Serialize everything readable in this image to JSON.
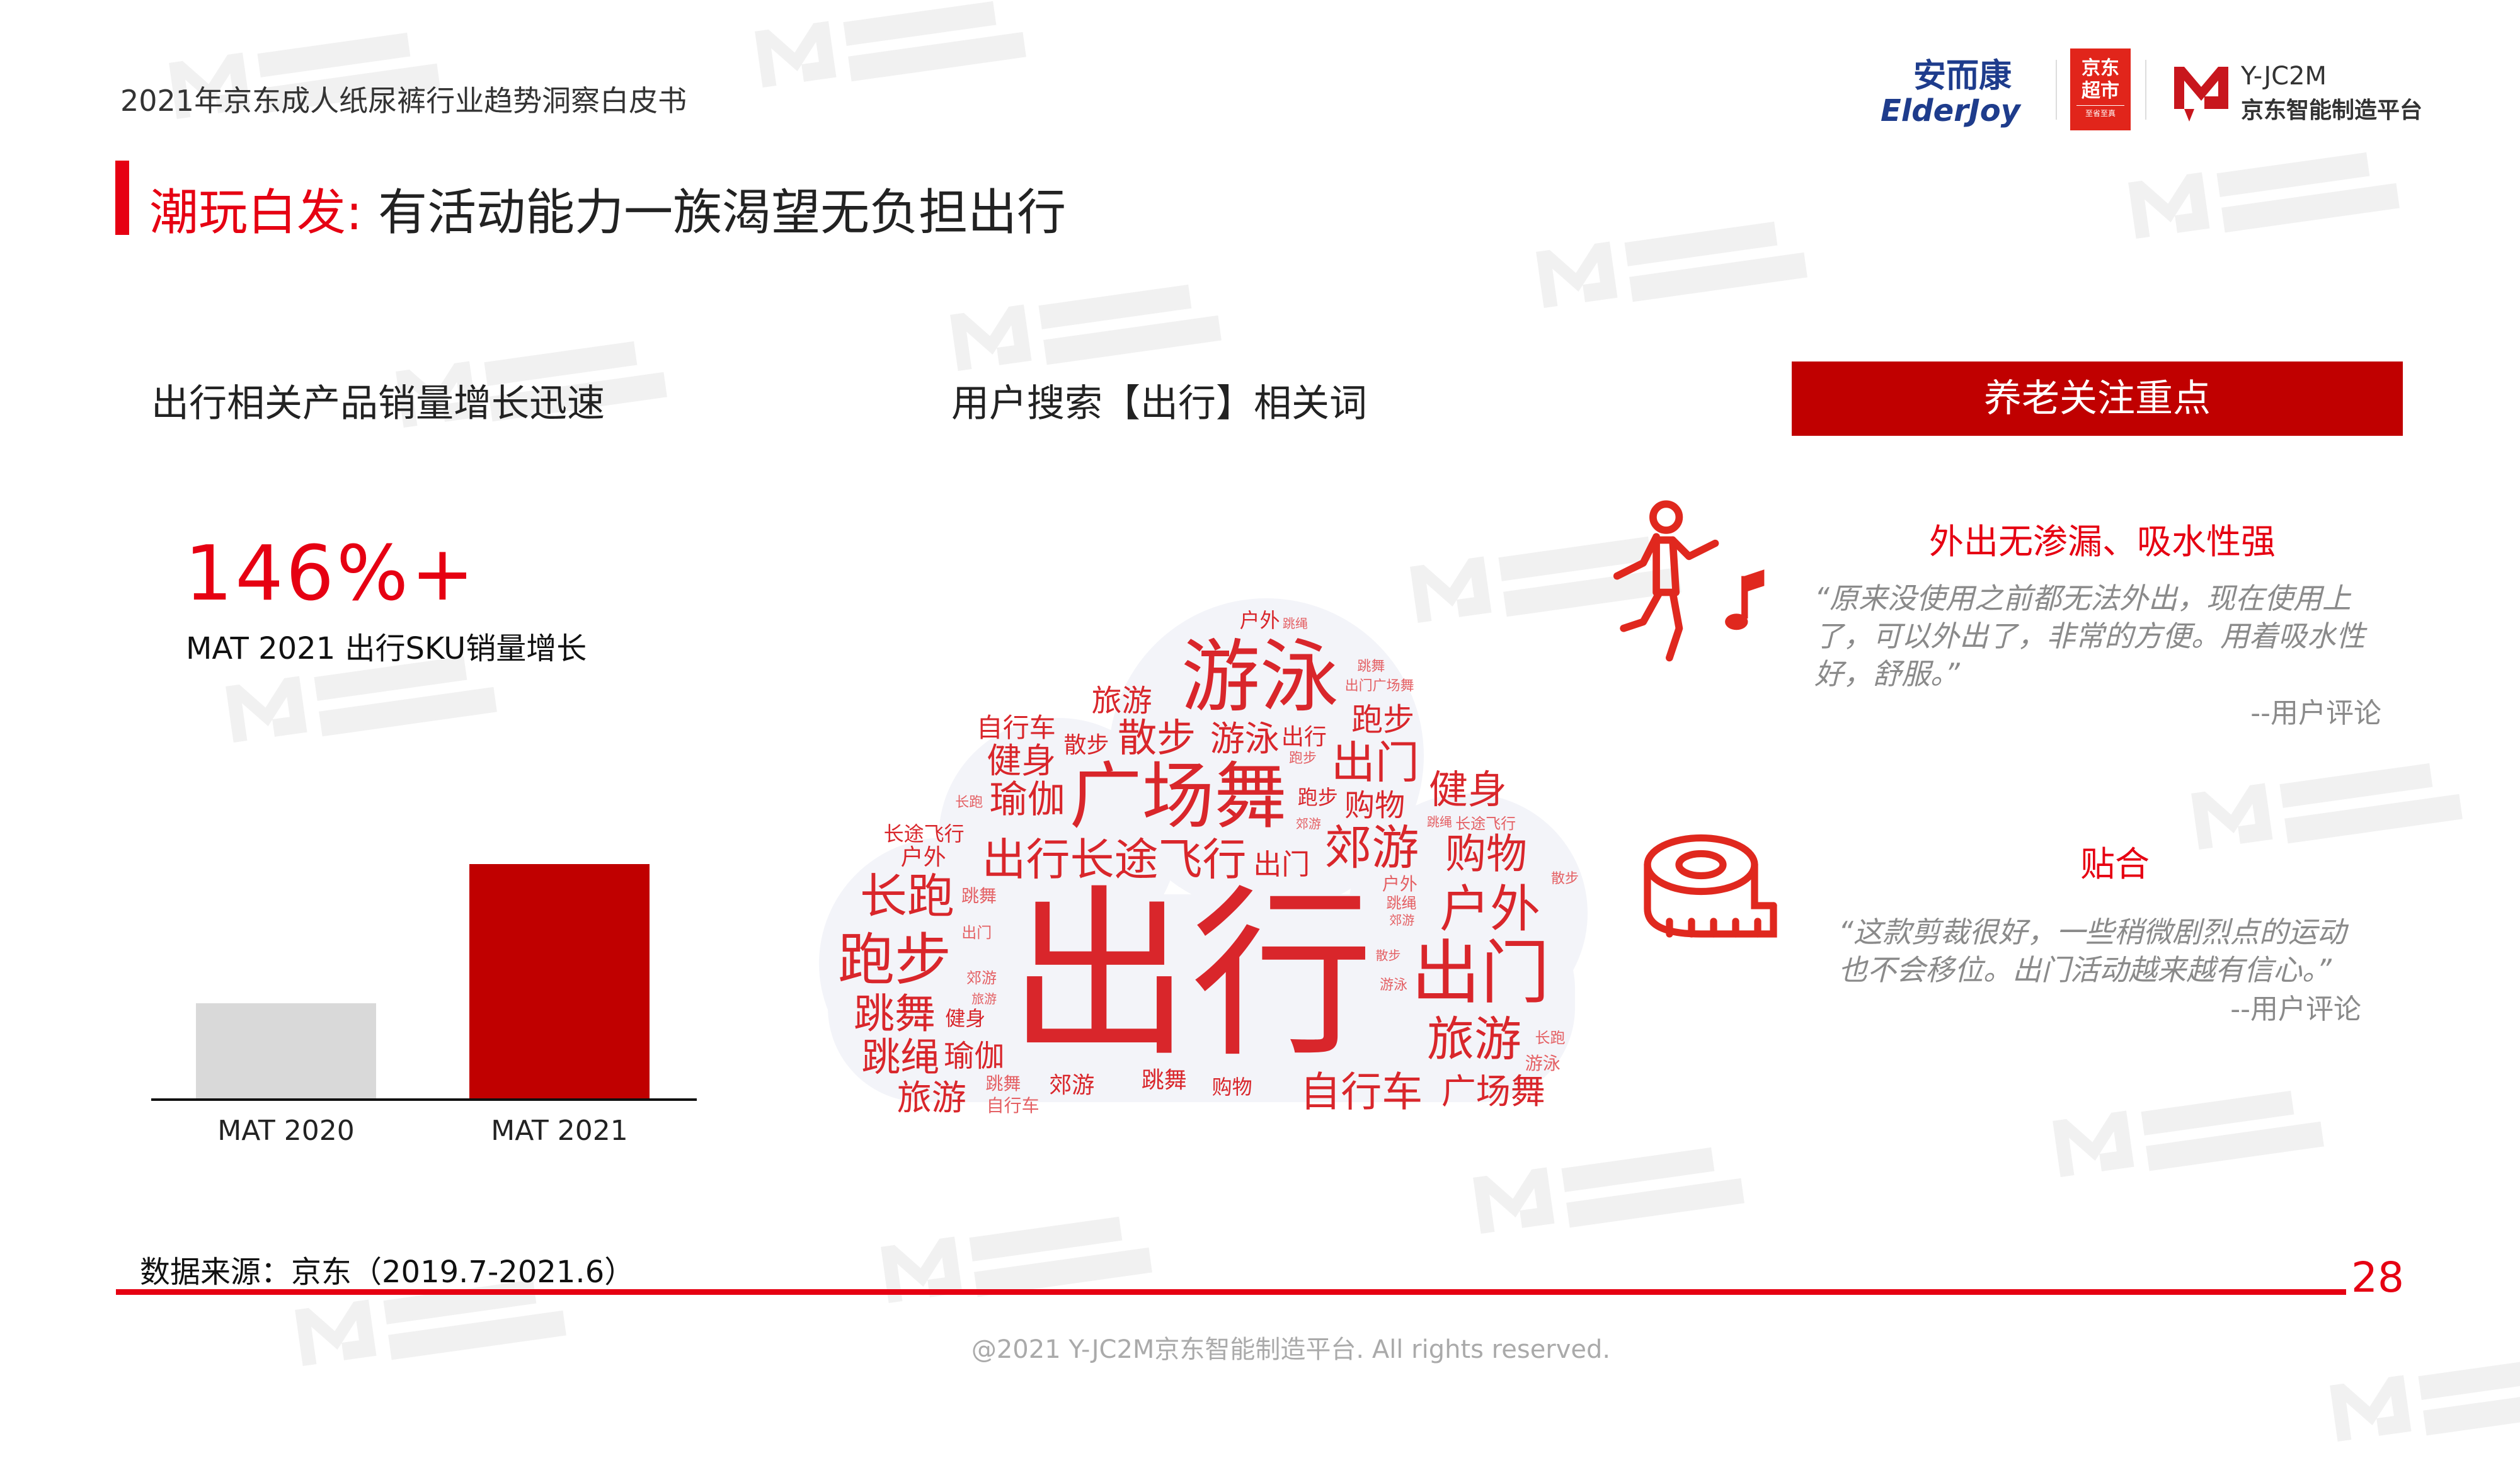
{
  "header": {
    "doc_title": "2021年京东成人纸尿裤行业趋势洞察白皮书",
    "logos": {
      "elderjoy_cn": "安而康",
      "elderjoy_en": "ElderJoy",
      "jd_line1": "京东",
      "jd_line2": "超市",
      "jd_slogan": "至省至真",
      "yjc2m_en": "Y-JC2M",
      "yjc2m_cn": "京东智能制造平台"
    }
  },
  "title": {
    "highlight": "潮玩白发:",
    "text": " 有活动能力一族渴望无负担出行",
    "accent_color": "#e60012"
  },
  "left": {
    "heading": "出行相关产品销量增长迅速",
    "big_stat": "146%+",
    "stat_label": "MAT 2021 出行SKU销量增长",
    "source": "数据来源：京东（2019.7-2021.6）"
  },
  "chart_data": {
    "type": "bar",
    "categories": [
      "MAT 2020",
      "MAT 2021"
    ],
    "values": [
      1.0,
      2.46
    ],
    "colors": [
      "#d9d9d9",
      "#c00000"
    ],
    "title": "",
    "xlabel": "",
    "ylabel": "",
    "grid": false
  },
  "middle": {
    "heading": "用户搜索【出行】相关词",
    "words": [
      "出行",
      "广场舞",
      "游泳",
      "跳绳",
      "瑜伽",
      "散步",
      "健身",
      "出门",
      "长跑",
      "跑步",
      "跳舞",
      "旅游",
      "出行长途飞行",
      "户外",
      "出门",
      "旅游",
      "郊游",
      "购物",
      "自行车",
      "广场舞",
      "旅游",
      "购物",
      "自行车",
      "出门",
      "健身",
      "游泳",
      "跑步",
      "瑜伽",
      "跑步",
      "散步",
      "跳舞",
      "长途飞行",
      "户外",
      "郊游",
      "跳舞",
      "跳绳",
      "出行",
      "户外",
      "游泳",
      "长跑",
      "长跑",
      "跳绳",
      "郊游",
      "跑步",
      "跳舞",
      "出门",
      "游泳",
      "旅游",
      "散步",
      "健身",
      "自行车",
      "长途飞行",
      "出门广场舞",
      "郊游",
      "户外",
      "购物",
      "跳舞",
      "跳绳",
      "散步",
      "郊游"
    ]
  },
  "right": {
    "banner": "养老关注重点",
    "items": [
      {
        "icon": "dancer-icon",
        "heading": "外出无渗漏、吸水性强",
        "quote": "“原来没使用之前都无法外出，现在使用上了，可以外出了，非常的方便。用着吸水性好，舒服。”",
        "signature": "--用户评论"
      },
      {
        "icon": "tape-measure-icon",
        "heading": "贴合",
        "quote": "“这款剪裁很好，一些稍微剧烈点的运动也不会移位。出门活动越来越有信心。”",
        "signature": "--用户评论"
      }
    ]
  },
  "footer": {
    "page_number": "28",
    "copyright": "@2021 Y-JC2M京东智能制造平台. All rights reserved."
  },
  "watermark": {
    "line1": "Y-JC2M",
    "line2": "京东智能制造平台"
  }
}
